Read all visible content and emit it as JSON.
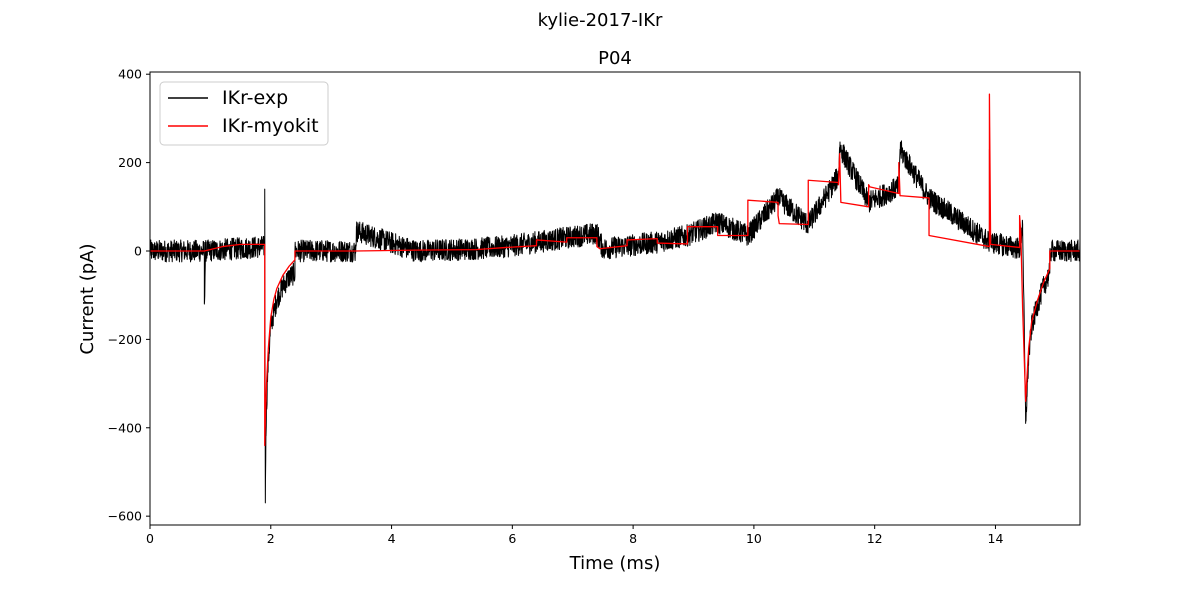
{
  "figure": {
    "suptitle": "kylie-2017-IKr"
  },
  "chart_data": {
    "type": "line",
    "title": "P04",
    "xlabel": "Time (ms)",
    "ylabel": "Current (pA)",
    "xlim": [
      0,
      15.4
    ],
    "ylim": [
      -620,
      405
    ],
    "xticks": [
      0,
      2,
      4,
      6,
      8,
      10,
      12,
      14
    ],
    "yticks": [
      -600,
      -400,
      -200,
      0,
      200,
      400
    ],
    "grid": false,
    "legend_position": "top-left",
    "series": [
      {
        "name": "IKr-exp",
        "color": "#000000",
        "noise_amplitude": 25,
        "x": [
          0,
          0.9,
          0.9,
          0.92,
          1.9,
          1.9,
          1.91,
          1.92,
          1.95,
          2.0,
          2.1,
          2.2,
          2.3,
          2.4,
          2.4,
          3.4,
          3.42,
          4.4,
          5.4,
          5.9,
          6.4,
          6.9,
          7.4,
          7.5,
          8.4,
          8.9,
          9.4,
          9.9,
          10.4,
          10.9,
          11.4,
          11.42,
          11.9,
          12.4,
          12.42,
          12.9,
          13.9,
          13.9,
          13.92,
          14.4,
          14.45,
          14.5,
          14.52,
          14.55,
          14.6,
          14.7,
          14.8,
          14.9,
          14.9,
          15.4
        ],
        "y": [
          0,
          0,
          -120,
          0,
          10,
          140,
          -570,
          -400,
          -270,
          -170,
          -110,
          -80,
          -60,
          -50,
          0,
          0,
          45,
          0,
          5,
          10,
          20,
          30,
          40,
          5,
          20,
          35,
          65,
          35,
          120,
          60,
          170,
          235,
          110,
          145,
          230,
          120,
          20,
          230,
          20,
          5,
          60,
          -390,
          -330,
          -240,
          -170,
          -120,
          -80,
          -50,
          0,
          0
        ]
      },
      {
        "name": "IKr-myokit",
        "color": "#ff0000",
        "x": [
          0,
          0.9,
          1.2,
          1.5,
          1.9,
          1.9,
          1.91,
          1.93,
          1.96,
          2.0,
          2.05,
          2.1,
          2.2,
          2.3,
          2.4,
          2.4,
          3.4,
          4.4,
          5.4,
          5.4,
          5.9,
          5.9,
          6.4,
          6.4,
          6.9,
          6.9,
          7.4,
          7.4,
          7.45,
          7.9,
          7.9,
          8.4,
          8.4,
          8.9,
          8.9,
          9.4,
          9.4,
          9.9,
          9.9,
          10.4,
          10.4,
          10.42,
          10.9,
          10.9,
          11.4,
          11.4,
          11.42,
          11.44,
          11.9,
          11.9,
          11.92,
          12.4,
          12.4,
          12.42,
          12.44,
          12.9,
          12.9,
          13.9,
          13.9,
          13.92,
          14.4,
          14.4,
          14.42,
          14.45,
          14.5,
          14.52,
          14.55,
          14.6,
          14.7,
          14.8,
          14.9,
          14.9,
          15.4
        ],
        "y": [
          0,
          0,
          10,
          15,
          15,
          -440,
          -380,
          -300,
          -220,
          -150,
          -110,
          -85,
          -55,
          -35,
          -20,
          0,
          0,
          2,
          3,
          3,
          8,
          8,
          12,
          25,
          20,
          30,
          30,
          10,
          5,
          12,
          25,
          28,
          18,
          16,
          55,
          55,
          35,
          35,
          115,
          110,
          80,
          62,
          60,
          160,
          155,
          150,
          220,
          110,
          100,
          150,
          145,
          130,
          200,
          125,
          125,
          120,
          35,
          10,
          355,
          15,
          8,
          80,
          40,
          -130,
          -340,
          -290,
          -220,
          -160,
          -110,
          -70,
          -40,
          0,
          0
        ]
      }
    ]
  }
}
